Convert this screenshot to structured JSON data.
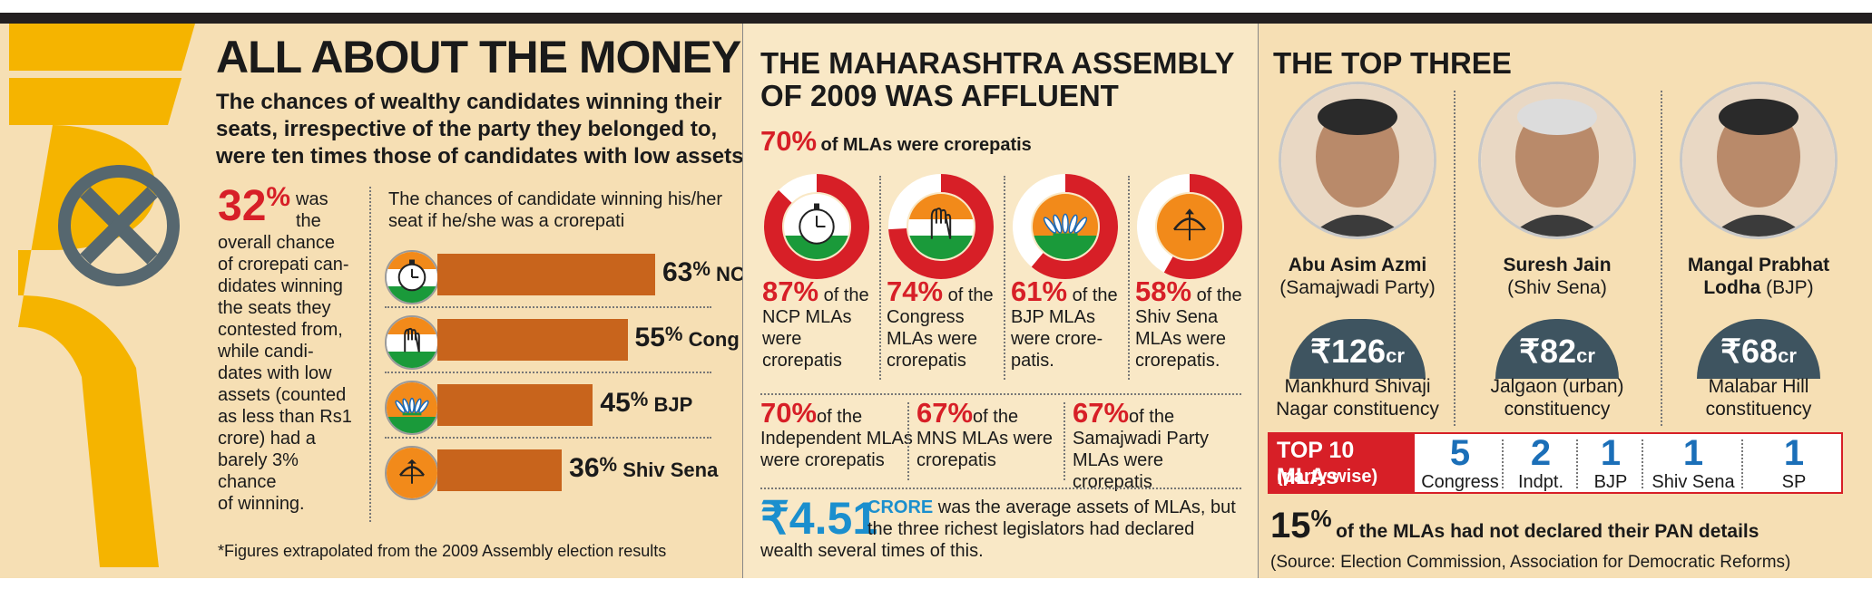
{
  "colors": {
    "accent_red": "#d71f27",
    "accent_blue": "#1b8fce",
    "bar_orange": "#c8641c",
    "rupee_gold": "#f5b400",
    "dome": "#3e5460"
  },
  "p1": {
    "title": "ALL ABOUT THE MONEY",
    "sub1": "The chances of wealthy candidates winning their",
    "sub2": "seats, irrespective of the party they belonged to,",
    "sub3": "were ten times those of candidates with low assets",
    "sub_star": "*",
    "stat_pct": "32",
    "stat_pct_sign": "%",
    "stat_was": "was",
    "stat_the": "the",
    "stat_lines": [
      "overall chance",
      "of crorepati can-",
      "didates winning",
      "the seats they",
      "contested from,",
      "while candi-",
      "dates with low",
      "assets (counted",
      "as less than Rs1",
      "crore) had a",
      "barely 3% chance",
      "of winning."
    ],
    "chart_caption_1": "The chances of candidate winning his/her",
    "chart_caption_2": "seat if he/she was a crorepati",
    "footnote": "*Figures extrapolated from the 2009 Assembly election results"
  },
  "chart_data": {
    "type": "bar",
    "title": "The chances of candidate winning his/her seat if he/she was a crorepati",
    "categories": [
      "NCP",
      "Cong",
      "BJP",
      "Shiv Sena"
    ],
    "values": [
      63,
      55,
      45,
      36
    ],
    "unit": "%",
    "xlim": [
      0,
      63
    ]
  },
  "p2": {
    "title1": "THE MAHARASHTRA ASSEMBLY",
    "title2": "OF 2009 WAS AFFLUENT",
    "overall_pct": "70%",
    "overall_text": "of MLAs were crorepatis",
    "dials": [
      {
        "pct_value": 87,
        "pct": "87%",
        "l1": "of the",
        "lines": [
          "NCP MLAs",
          "were",
          "crorepatis"
        ],
        "symbol": "clock-icon",
        "inner": [
          "#ffffff",
          "#ffffff",
          "#1a9a3a"
        ]
      },
      {
        "pct_value": 74,
        "pct": "74%",
        "l1": "of the",
        "lines": [
          "Congress",
          "MLAs were",
          "crorepatis"
        ],
        "symbol": "hand-icon",
        "inner": [
          "#f28a1a",
          "#ffffff",
          "#1a9a3a"
        ]
      },
      {
        "pct_value": 61,
        "pct": "61%",
        "l1": "of the",
        "lines": [
          "BJP MLAs",
          "were crore-",
          "patis."
        ],
        "symbol": "lotus-icon",
        "inner": [
          "#f28a1a",
          "#f28a1a",
          "#1a9a3a"
        ]
      },
      {
        "pct_value": 58,
        "pct": "58%",
        "l1": "of the",
        "lines": [
          "Shiv Sena",
          "MLAs were",
          "crorepatis."
        ],
        "symbol": "bow-arrow-icon",
        "inner": [
          "#f28a1a",
          "#f28a1a",
          "#f28a1a"
        ]
      }
    ],
    "others": [
      {
        "pct": "70%",
        "l1": "of the",
        "lines": [
          "Independent MLAs",
          "were crorepatis"
        ]
      },
      {
        "pct": "67%",
        "l1": "of the",
        "lines": [
          "MNS MLAs were",
          "crorepatis"
        ]
      },
      {
        "pct": "67%",
        "l1": "of the",
        "lines": [
          "Samajwadi Party",
          "MLAs were crorepatis"
        ]
      }
    ],
    "avg_value": "₹4.51",
    "avg_unit": "CRORE",
    "avg_text1": "was the average assets of MLAs, but",
    "avg_text2": "the three richest legislators had declared",
    "avg_text3": "wealth several times of this."
  },
  "p3": {
    "title": "THE TOP THREE",
    "people": [
      {
        "name": "Abu Asim Azmi",
        "party": "(Samajwadi Party)",
        "asset": "₹126",
        "asset_unit": "cr",
        "constituency": [
          "Mankhurd Shivaji",
          "Nagar constituency"
        ]
      },
      {
        "name": "Suresh Jain",
        "party": "(Shiv Sena)",
        "asset": "₹82",
        "asset_unit": "cr",
        "constituency": [
          "Jalgaon (urban)",
          "constituency"
        ]
      },
      {
        "name": "Mangal Prabhat",
        "name2": "Lodha",
        "party": "(BJP)",
        "asset": "₹68",
        "asset_unit": "cr",
        "constituency": [
          "Malabar Hill",
          "constituency"
        ]
      }
    ],
    "top10_title": "TOP 10 MLAs",
    "top10_sub": "(party wise)",
    "top10": [
      {
        "count": "5",
        "party": "Congress"
      },
      {
        "count": "2",
        "party": "Indpt."
      },
      {
        "count": "1",
        "party": "BJP"
      },
      {
        "count": "1",
        "party": "Shiv Sena"
      },
      {
        "count": "1",
        "party": "SP"
      }
    ],
    "pan_pct": "15",
    "pan_sign": "%",
    "pan_text": "of the MLAs had not declared their PAN details",
    "source": "(Source: Election Commission, Association for Democratic Reforms)"
  }
}
